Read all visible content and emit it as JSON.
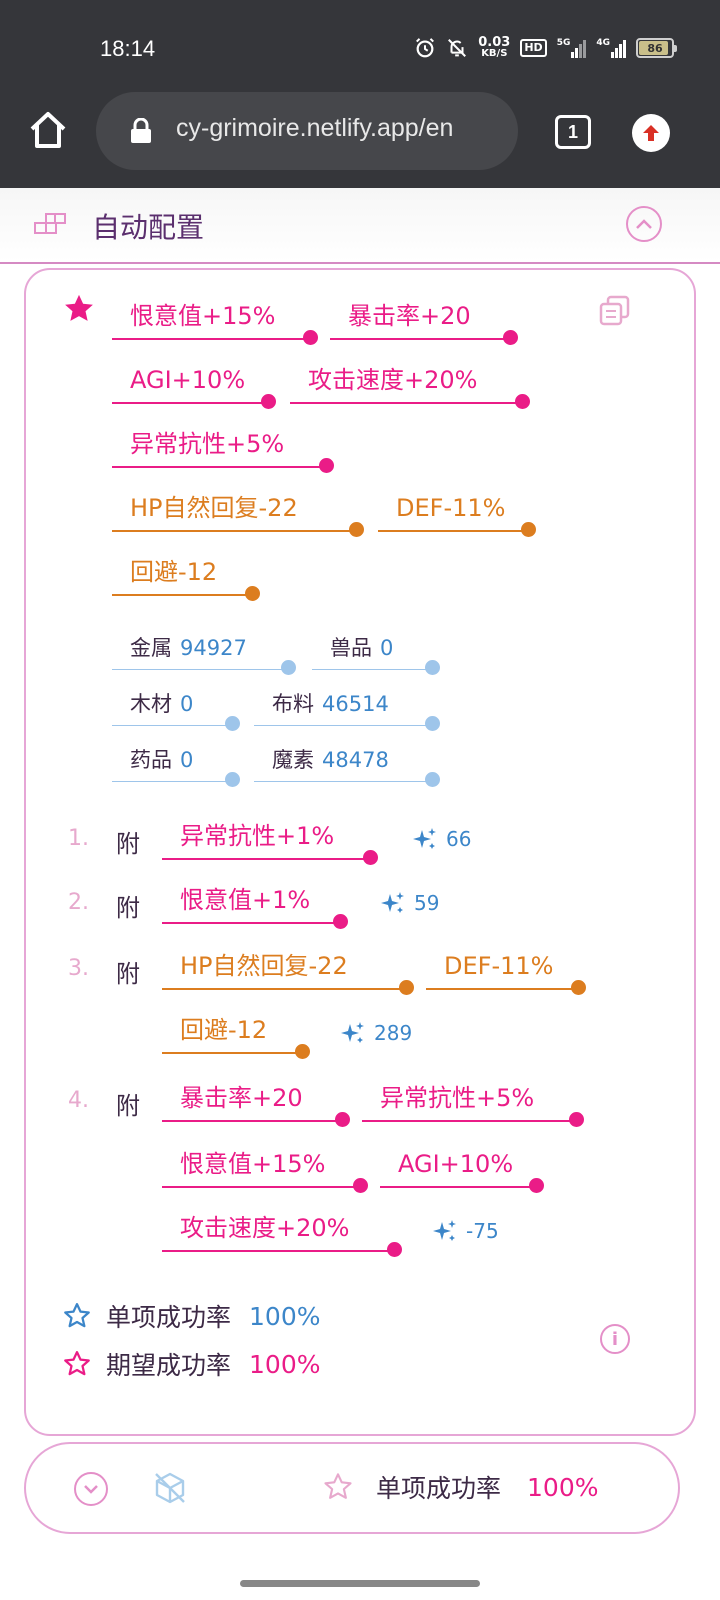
{
  "status_bar": {
    "time": "18:14",
    "net_speed_value": "0.03",
    "net_speed_unit": "KB/S",
    "hd": "HD",
    "net1": "5G",
    "net2": "4G",
    "battery": "86"
  },
  "browser": {
    "url": "cy-grimoire.netlify.app/en",
    "tab_count": "1"
  },
  "section": {
    "title": "自动配置"
  },
  "target_stats": [
    {
      "label": "恨意值+15%",
      "color": "pink"
    },
    {
      "label": "暴击率+20",
      "color": "pink"
    },
    {
      "label": "AGI+10%",
      "color": "pink"
    },
    {
      "label": "攻击速度+20%",
      "color": "pink"
    },
    {
      "label": "异常抗性+5%",
      "color": "pink"
    },
    {
      "label": "HP自然回复-22",
      "color": "orange"
    },
    {
      "label": "DEF-11%",
      "color": "orange"
    },
    {
      "label": "回避-12",
      "color": "orange"
    }
  ],
  "materials": [
    {
      "name": "金属",
      "value": "94927"
    },
    {
      "name": "兽品",
      "value": "0"
    },
    {
      "name": "木材",
      "value": "0"
    },
    {
      "name": "布料",
      "value": "46514"
    },
    {
      "name": "药品",
      "value": "0"
    },
    {
      "name": "魔素",
      "value": "48478"
    }
  ],
  "steps": [
    {
      "index": "1.",
      "action": "附",
      "stats": [
        "异常抗性+1%"
      ],
      "potential": "66"
    },
    {
      "index": "2.",
      "action": "附",
      "stats": [
        "恨意值+1%"
      ],
      "potential": "59"
    },
    {
      "index": "3.",
      "action": "附",
      "stats": [
        "HP自然回复-22",
        "DEF-11%",
        "回避-12"
      ],
      "potential": "289"
    },
    {
      "index": "4.",
      "action": "附",
      "stats": [
        "暴击率+20",
        "异常抗性+5%",
        "恨意值+15%",
        "AGI+10%",
        "攻击速度+20%"
      ],
      "potential": "-75"
    }
  ],
  "rates": {
    "single_label": "单项成功率",
    "single_value": "100%",
    "expected_label": "期望成功率",
    "expected_value": "100%"
  },
  "bottom_bar": {
    "rate_label": "单项成功率",
    "rate_value": "100%"
  },
  "colors": {
    "pink": "#ea1c87",
    "orange": "#dc7d1f",
    "blue": "#3c86c9",
    "light_blue": "#9ec5ea",
    "border": "#e6a6d6"
  },
  "icons": [
    "home-icon",
    "lock-icon",
    "tabs-icon",
    "update-icon",
    "grid-icon",
    "chevron-up-icon",
    "star-icon",
    "copy-icon",
    "sparkle-icon",
    "star-outline-icon",
    "info-icon",
    "chevron-down-icon",
    "cube-off-icon"
  ]
}
